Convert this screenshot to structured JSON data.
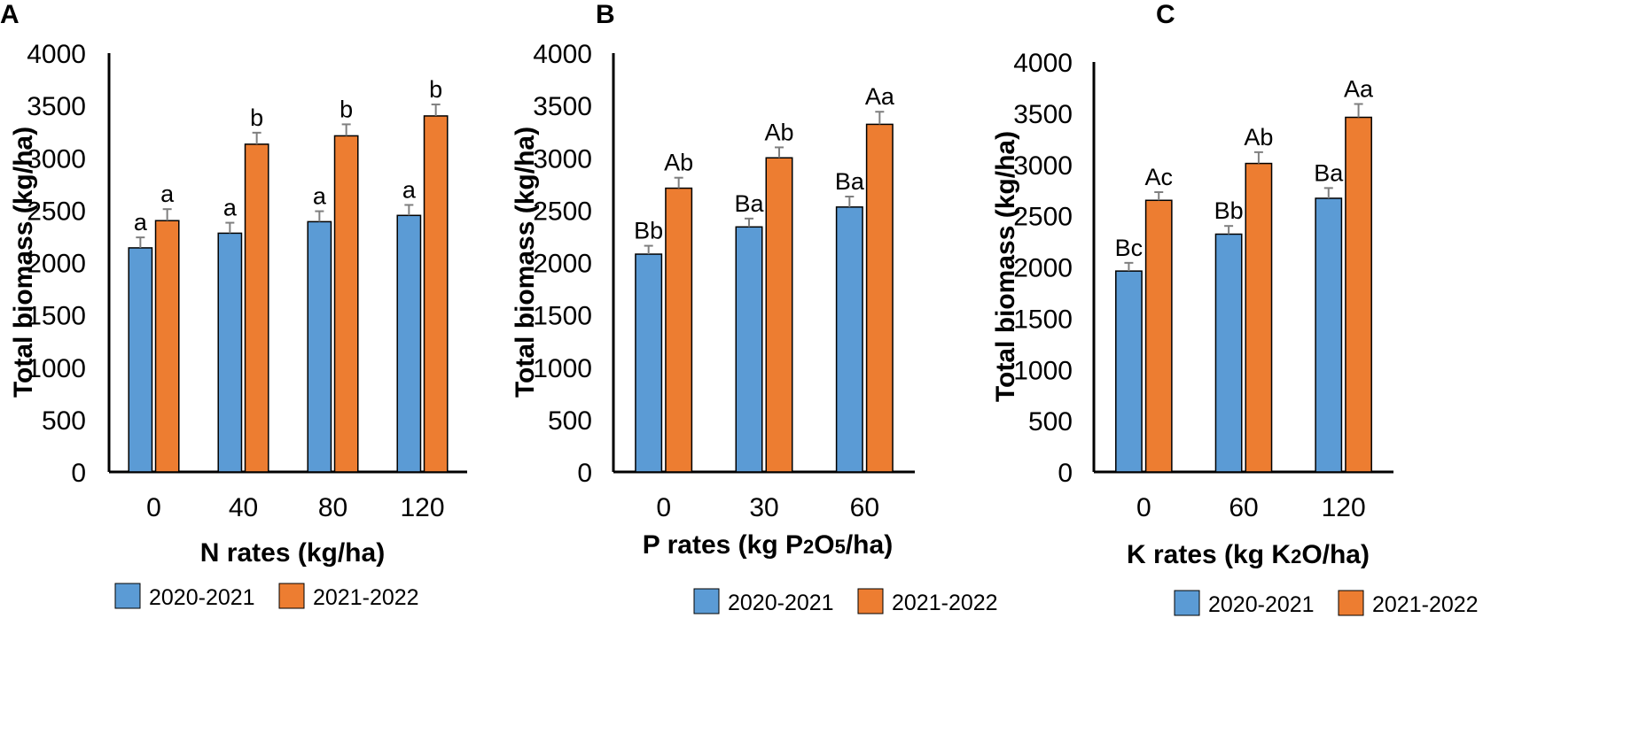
{
  "colors": {
    "series_1": "#5b9bd5",
    "series_2": "#ed7d31"
  },
  "chart_data": [
    {
      "type": "bar",
      "panel": "A",
      "title": "",
      "xlabel": "N rates (kg/ha)",
      "xlabel_parts": [],
      "ylabel": "Total biomass (kg/ha)",
      "ylim": [
        0,
        4000
      ],
      "yticks": [
        "0",
        "500",
        "1000",
        "1500",
        "2000",
        "2500",
        "3000",
        "3500",
        "4000"
      ],
      "categories": [
        "0",
        "40",
        "80",
        "120"
      ],
      "series": [
        {
          "name": "2020-2021",
          "values": [
            2140,
            2280,
            2390,
            2450
          ],
          "errors": [
            100,
            100,
            100,
            100
          ],
          "labels": [
            "a",
            "a",
            "a",
            "a"
          ]
        },
        {
          "name": "2021-2022",
          "values": [
            2400,
            3130,
            3210,
            3400
          ],
          "errors": [
            110,
            110,
            110,
            110
          ],
          "labels": [
            "a",
            "b",
            "b",
            "b"
          ]
        }
      ],
      "legend": "bottom"
    },
    {
      "type": "bar",
      "panel": "B",
      "title": "",
      "xlabel": "P rates (kg P2O5/ha)",
      "xlabel_parts": [
        {
          "text": "P rates (kg P"
        },
        {
          "text": "2",
          "small": true
        },
        {
          "text": "O"
        },
        {
          "text": "5",
          "small": true
        },
        {
          "text": "/ha)"
        }
      ],
      "ylabel": "Total biomass (kg/ha)",
      "ylim": [
        0,
        4000
      ],
      "yticks": [
        "0",
        "500",
        "1000",
        "1500",
        "2000",
        "2500",
        "3000",
        "3500",
        "4000"
      ],
      "categories": [
        "0",
        "30",
        "60"
      ],
      "series": [
        {
          "name": "2020-2021",
          "values": [
            2080,
            2340,
            2530
          ],
          "errors": [
            80,
            80,
            100
          ],
          "labels": [
            "Bb",
            "Ba",
            "Ba"
          ]
        },
        {
          "name": "2021-2022",
          "values": [
            2710,
            3000,
            3320
          ],
          "errors": [
            100,
            100,
            120
          ],
          "labels": [
            "Ab",
            "Ab",
            "Aa"
          ]
        }
      ],
      "legend": "bottom"
    },
    {
      "type": "bar",
      "panel": "C",
      "title": "",
      "xlabel": "K rates (kg K2O/ha)",
      "xlabel_parts": [
        {
          "text": "K rates (kg K"
        },
        {
          "text": "2",
          "small": true
        },
        {
          "text": "O/ha)"
        }
      ],
      "ylabel": "Total biomass (kg/ha)",
      "ylim": [
        0,
        4000
      ],
      "yticks": [
        "0",
        "500",
        "1000",
        "1500",
        "2000",
        "2500",
        "3000",
        "3500",
        "4000"
      ],
      "categories": [
        "0",
        "60",
        "120"
      ],
      "series": [
        {
          "name": "2020-2021",
          "values": [
            1960,
            2320,
            2670
          ],
          "errors": [
            80,
            80,
            100
          ],
          "labels": [
            "Bc",
            "Bb",
            "Ba"
          ]
        },
        {
          "name": "2021-2022",
          "values": [
            2650,
            3010,
            3460
          ],
          "errors": [
            80,
            110,
            130
          ],
          "labels": [
            "Ac",
            "Ab",
            "Aa"
          ]
        }
      ],
      "legend": "bottom"
    }
  ]
}
